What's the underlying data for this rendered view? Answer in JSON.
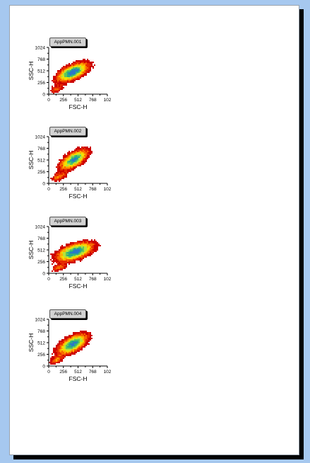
{
  "colors": {
    "background": "#a6c8ef",
    "page": "#ffffff",
    "density_scale": [
      "#cc0000",
      "#e62a00",
      "#f76b00",
      "#ffb000",
      "#f2e000",
      "#b8e23a",
      "#5ec85a",
      "#2aa88a",
      "#2a78c8"
    ]
  },
  "chart_data": [
    {
      "type": "heatmap",
      "sample": "AppPMN.001",
      "xlabel": "FSC-H",
      "ylabel": "SSC-H",
      "xlim": [
        0,
        1024
      ],
      "ylim": [
        0,
        1024
      ],
      "xticks": [
        "0",
        "256",
        "512",
        "768",
        "102"
      ],
      "yticks": [
        "0",
        "256",
        "512",
        "768",
        "1024"
      ],
      "populations": [
        {
          "name": "",
          "cx": 420,
          "cy": 480,
          "sx": 170,
          "sy": 130,
          "rho": 0.6,
          "weight": 0.75
        },
        {
          "name": "",
          "cx": 140,
          "cy": 110,
          "sx": 70,
          "sy": 55,
          "rho": 0.5,
          "weight": 0.25
        }
      ]
    },
    {
      "type": "heatmap",
      "sample": "AppPMN.002",
      "xlabel": "FSC-H",
      "ylabel": "SSC-H",
      "xlim": [
        0,
        1024
      ],
      "ylim": [
        0,
        1024
      ],
      "xticks": [
        "0",
        "256",
        "512",
        "768",
        "102"
      ],
      "yticks": [
        "0",
        "256",
        "512",
        "768",
        "1024"
      ],
      "populations": [
        {
          "name": "",
          "cx": 440,
          "cy": 520,
          "sx": 150,
          "sy": 140,
          "rho": 0.65,
          "weight": 0.7
        },
        {
          "name": "",
          "cx": 180,
          "cy": 140,
          "sx": 80,
          "sy": 60,
          "rho": 0.5,
          "weight": 0.3
        }
      ]
    },
    {
      "type": "heatmap",
      "sample": "AppPMN.003",
      "xlabel": "FSC-H",
      "ylabel": "SSC-H",
      "xlim": [
        0,
        1024
      ],
      "ylim": [
        0,
        1024
      ],
      "xticks": [
        "0",
        "256",
        "512",
        "768",
        "102"
      ],
      "yticks": [
        "0",
        "256",
        "512",
        "768",
        "1024"
      ],
      "populations": [
        {
          "name": "",
          "cx": 460,
          "cy": 470,
          "sx": 200,
          "sy": 130,
          "rho": 0.55,
          "weight": 0.75
        },
        {
          "name": "",
          "cx": 180,
          "cy": 120,
          "sx": 80,
          "sy": 55,
          "rho": 0.5,
          "weight": 0.25
        }
      ]
    },
    {
      "type": "heatmap",
      "sample": "AppPMN.004",
      "xlabel": "FSC-H",
      "ylabel": "SSC-H",
      "xlim": [
        0,
        1024
      ],
      "ylim": [
        0,
        1024
      ],
      "xticks": [
        "0",
        "256",
        "512",
        "768",
        "102"
      ],
      "yticks": [
        "0",
        "256",
        "512",
        "768",
        "1024"
      ],
      "populations": [
        {
          "name": "",
          "cx": 420,
          "cy": 480,
          "sx": 160,
          "sy": 140,
          "rho": 0.6,
          "weight": 0.72
        },
        {
          "name": "",
          "cx": 130,
          "cy": 130,
          "sx": 70,
          "sy": 60,
          "rho": 0.5,
          "weight": 0.28
        }
      ]
    }
  ]
}
